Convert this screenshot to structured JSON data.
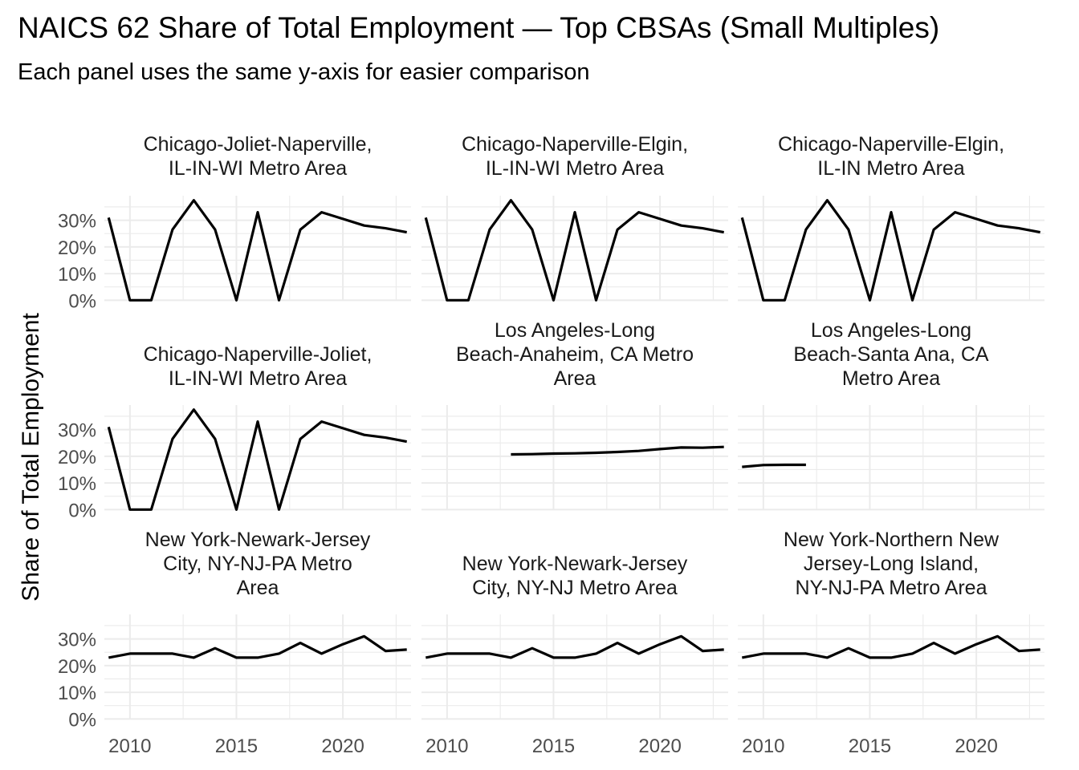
{
  "title": "NAICS 62 Share of Total Employment — Top CBSAs (Small Multiples)",
  "subtitle": "Each panel uses the same y-axis for easier comparison",
  "chart_data": {
    "type": "line",
    "layout": "facet 3x3, shared axes",
    "ylabel": "Share of Total Employment",
    "xlabel": "",
    "x_ticks": [
      2010,
      2015,
      2020
    ],
    "y_ticks": [
      "0%",
      "10%",
      "20%",
      "30%"
    ],
    "y_tick_values": [
      0,
      0.1,
      0.2,
      0.3
    ],
    "xlim": [
      2008.8,
      2023.2
    ],
    "ylim": [
      -0.002,
      0.392
    ],
    "grid": true,
    "panels": [
      {
        "strip": [
          "Chicago-Joliet-Naperville,",
          "IL-IN-WI Metro Area"
        ],
        "x": [
          2009,
          2010,
          2011,
          2012,
          2013,
          2014,
          2015,
          2016,
          2017,
          2018,
          2019,
          2020,
          2021,
          2022,
          2023
        ],
        "y": [
          0.31,
          0.0,
          0.0,
          0.265,
          0.375,
          0.265,
          0.0,
          0.33,
          0.0,
          0.265,
          0.33,
          0.305,
          0.28,
          0.27,
          0.255
        ]
      },
      {
        "strip": [
          "Chicago-Naperville-Elgin,",
          "IL-IN-WI Metro Area"
        ],
        "x": [
          2009,
          2010,
          2011,
          2012,
          2013,
          2014,
          2015,
          2016,
          2017,
          2018,
          2019,
          2020,
          2021,
          2022,
          2023
        ],
        "y": [
          0.31,
          0.0,
          0.0,
          0.265,
          0.375,
          0.265,
          0.0,
          0.33,
          0.0,
          0.265,
          0.33,
          0.305,
          0.28,
          0.27,
          0.255
        ]
      },
      {
        "strip": [
          "Chicago-Naperville-Elgin,",
          "IL-IN Metro Area"
        ],
        "x": [
          2009,
          2010,
          2011,
          2012,
          2013,
          2014,
          2015,
          2016,
          2017,
          2018,
          2019,
          2020,
          2021,
          2022,
          2023
        ],
        "y": [
          0.31,
          0.0,
          0.0,
          0.265,
          0.375,
          0.265,
          0.0,
          0.33,
          0.0,
          0.265,
          0.33,
          0.305,
          0.28,
          0.27,
          0.255
        ]
      },
      {
        "strip": [
          "Chicago-Naperville-Joliet,",
          "IL-IN-WI Metro Area"
        ],
        "x": [
          2009,
          2010,
          2011,
          2012,
          2013,
          2014,
          2015,
          2016,
          2017,
          2018,
          2019,
          2020,
          2021,
          2022,
          2023
        ],
        "y": [
          0.31,
          0.0,
          0.0,
          0.265,
          0.375,
          0.265,
          0.0,
          0.33,
          0.0,
          0.265,
          0.33,
          0.305,
          0.28,
          0.27,
          0.255
        ]
      },
      {
        "strip": [
          "Los Angeles-Long",
          "Beach-Anaheim, CA Metro",
          "Area"
        ],
        "x": [
          2013,
          2014,
          2015,
          2016,
          2017,
          2018,
          2019,
          2020,
          2021,
          2022,
          2023
        ],
        "y": [
          0.207,
          0.208,
          0.21,
          0.211,
          0.213,
          0.216,
          0.22,
          0.227,
          0.233,
          0.232,
          0.235
        ]
      },
      {
        "strip": [
          "Los Angeles-Long",
          "Beach-Santa Ana, CA",
          "Metro Area"
        ],
        "x": [
          2009,
          2010,
          2011,
          2012
        ],
        "y": [
          0.16,
          0.167,
          0.168,
          0.168
        ]
      },
      {
        "strip": [
          "New York-Newark-Jersey",
          "City, NY-NJ-PA Metro",
          "Area"
        ],
        "x": [
          2009,
          2010,
          2011,
          2012,
          2013,
          2014,
          2015,
          2016,
          2017,
          2018,
          2019,
          2020,
          2021,
          2022,
          2023
        ],
        "y": [
          0.23,
          0.245,
          0.245,
          0.245,
          0.23,
          0.265,
          0.23,
          0.23,
          0.245,
          0.285,
          0.245,
          0.28,
          0.31,
          0.255,
          0.26
        ]
      },
      {
        "strip": [
          "New York-Newark-Jersey",
          "City, NY-NJ Metro Area"
        ],
        "x": [
          2009,
          2010,
          2011,
          2012,
          2013,
          2014,
          2015,
          2016,
          2017,
          2018,
          2019,
          2020,
          2021,
          2022,
          2023
        ],
        "y": [
          0.23,
          0.245,
          0.245,
          0.245,
          0.23,
          0.265,
          0.23,
          0.23,
          0.245,
          0.285,
          0.245,
          0.28,
          0.31,
          0.255,
          0.26
        ]
      },
      {
        "strip": [
          "New York-Northern New",
          "Jersey-Long Island,",
          "NY-NJ-PA Metro Area"
        ],
        "x": [
          2009,
          2010,
          2011,
          2012,
          2013,
          2014,
          2015,
          2016,
          2017,
          2018,
          2019,
          2020,
          2021,
          2022,
          2023
        ],
        "y": [
          0.23,
          0.245,
          0.245,
          0.245,
          0.23,
          0.265,
          0.23,
          0.23,
          0.245,
          0.285,
          0.245,
          0.28,
          0.31,
          0.255,
          0.26
        ]
      }
    ]
  }
}
